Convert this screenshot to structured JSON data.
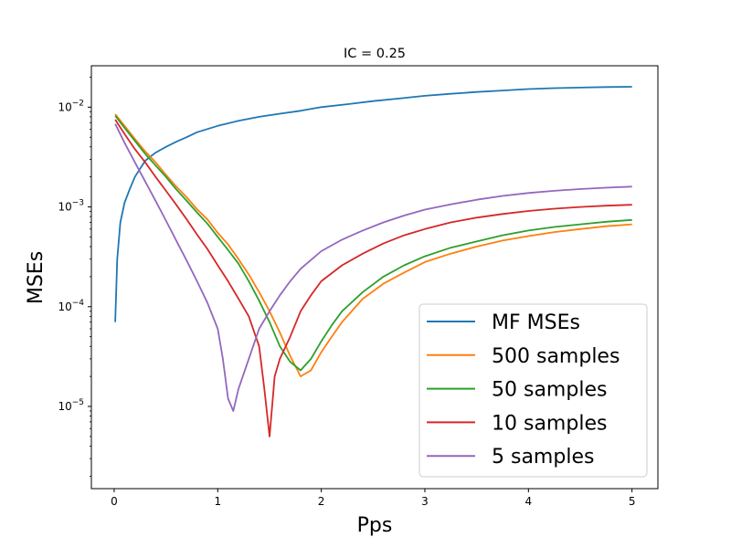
{
  "chart_data": {
    "type": "line",
    "title": "IC = 0.25",
    "xlabel": "Pps",
    "ylabel": "MSEs",
    "xlim": [
      -0.22,
      5.25
    ],
    "ylim": [
      1.5e-06,
      0.026
    ],
    "yscale": "log",
    "legend_position": "lower-right",
    "x_ticks": [
      0,
      1,
      2,
      3,
      4,
      5
    ],
    "x_tick_labels": [
      "0",
      "1",
      "2",
      "3",
      "4",
      "5"
    ],
    "y_ticks": [
      1e-05,
      0.0001,
      0.001,
      0.01
    ],
    "y_tick_labels": [
      {
        "base": "10",
        "exp": "−5"
      },
      {
        "base": "10",
        "exp": "−4"
      },
      {
        "base": "10",
        "exp": "−3"
      },
      {
        "base": "10",
        "exp": "−2"
      }
    ],
    "series": [
      {
        "name": "MF MSEs",
        "color": "#1f77b4",
        "points": [
          [
            0.01,
            7e-05
          ],
          [
            0.03,
            0.0003
          ],
          [
            0.06,
            0.0007
          ],
          [
            0.1,
            0.0011
          ],
          [
            0.15,
            0.0015
          ],
          [
            0.2,
            0.002
          ],
          [
            0.3,
            0.0029
          ],
          [
            0.4,
            0.0035
          ],
          [
            0.5,
            0.004
          ],
          [
            0.6,
            0.0045
          ],
          [
            0.7,
            0.005
          ],
          [
            0.8,
            0.0056
          ],
          [
            1.0,
            0.0065
          ],
          [
            1.2,
            0.0073
          ],
          [
            1.4,
            0.008
          ],
          [
            1.6,
            0.0086
          ],
          [
            1.8,
            0.0092
          ],
          [
            2.0,
            0.01
          ],
          [
            2.25,
            0.0107
          ],
          [
            2.5,
            0.0115
          ],
          [
            2.75,
            0.0122
          ],
          [
            3.0,
            0.013
          ],
          [
            3.25,
            0.0136
          ],
          [
            3.5,
            0.0142
          ],
          [
            3.75,
            0.0147
          ],
          [
            4.0,
            0.0152
          ],
          [
            4.25,
            0.0155
          ],
          [
            4.5,
            0.0157
          ],
          [
            4.75,
            0.0159
          ],
          [
            5.0,
            0.016
          ]
        ]
      },
      {
        "name": "500 samples",
        "color": "#ff7f0e",
        "points": [
          [
            0.01,
            0.0085
          ],
          [
            0.1,
            0.0065
          ],
          [
            0.2,
            0.0048
          ],
          [
            0.3,
            0.0036
          ],
          [
            0.4,
            0.0028
          ],
          [
            0.5,
            0.0021
          ],
          [
            0.6,
            0.0016
          ],
          [
            0.7,
            0.00125
          ],
          [
            0.8,
            0.00095
          ],
          [
            0.9,
            0.00075
          ],
          [
            1.0,
            0.00055
          ],
          [
            1.1,
            0.00042
          ],
          [
            1.2,
            0.0003
          ],
          [
            1.3,
            0.00021
          ],
          [
            1.4,
            0.00014
          ],
          [
            1.5,
            9e-05
          ],
          [
            1.6,
            5.5e-05
          ],
          [
            1.7,
            3.2e-05
          ],
          [
            1.8,
            2e-05
          ],
          [
            1.9,
            2.3e-05
          ],
          [
            2.0,
            3.5e-05
          ],
          [
            2.1,
            5e-05
          ],
          [
            2.2,
            7e-05
          ],
          [
            2.4,
            0.00012
          ],
          [
            2.6,
            0.00017
          ],
          [
            2.8,
            0.00022
          ],
          [
            3.0,
            0.00028
          ],
          [
            3.25,
            0.00034
          ],
          [
            3.5,
            0.0004
          ],
          [
            3.75,
            0.00046
          ],
          [
            4.0,
            0.00051
          ],
          [
            4.25,
            0.00056
          ],
          [
            4.5,
            0.0006
          ],
          [
            4.75,
            0.00064
          ],
          [
            5.0,
            0.00067
          ]
        ]
      },
      {
        "name": "50 samples",
        "color": "#2ca02c",
        "points": [
          [
            0.01,
            0.0082
          ],
          [
            0.1,
            0.0062
          ],
          [
            0.2,
            0.0046
          ],
          [
            0.3,
            0.0034
          ],
          [
            0.4,
            0.0026
          ],
          [
            0.5,
            0.002
          ],
          [
            0.6,
            0.0015
          ],
          [
            0.7,
            0.00115
          ],
          [
            0.8,
            0.00088
          ],
          [
            0.9,
            0.00068
          ],
          [
            1.0,
            0.0005
          ],
          [
            1.1,
            0.00037
          ],
          [
            1.2,
            0.00027
          ],
          [
            1.3,
            0.00018
          ],
          [
            1.4,
            0.000115
          ],
          [
            1.5,
            7e-05
          ],
          [
            1.6,
            4e-05
          ],
          [
            1.7,
            2.8e-05
          ],
          [
            1.8,
            2.3e-05
          ],
          [
            1.9,
            3e-05
          ],
          [
            2.0,
            4.5e-05
          ],
          [
            2.1,
            6.5e-05
          ],
          [
            2.2,
            9e-05
          ],
          [
            2.4,
            0.00014
          ],
          [
            2.6,
            0.0002
          ],
          [
            2.8,
            0.00026
          ],
          [
            3.0,
            0.00032
          ],
          [
            3.25,
            0.00039
          ],
          [
            3.5,
            0.00045
          ],
          [
            3.75,
            0.00052
          ],
          [
            4.0,
            0.00058
          ],
          [
            4.25,
            0.00063
          ],
          [
            4.5,
            0.00067
          ],
          [
            4.75,
            0.00071
          ],
          [
            5.0,
            0.00074
          ]
        ]
      },
      {
        "name": "10 samples",
        "color": "#d62728",
        "points": [
          [
            0.01,
            0.0075
          ],
          [
            0.1,
            0.0054
          ],
          [
            0.2,
            0.0038
          ],
          [
            0.3,
            0.0028
          ],
          [
            0.4,
            0.002
          ],
          [
            0.5,
            0.00145
          ],
          [
            0.6,
            0.00105
          ],
          [
            0.7,
            0.00075
          ],
          [
            0.8,
            0.00053
          ],
          [
            0.9,
            0.00038
          ],
          [
            1.0,
            0.00026
          ],
          [
            1.1,
            0.00018
          ],
          [
            1.2,
            0.00012
          ],
          [
            1.3,
            8e-05
          ],
          [
            1.4,
            4e-05
          ],
          [
            1.45,
            1.5e-05
          ],
          [
            1.5,
            5e-06
          ],
          [
            1.55,
            2e-05
          ],
          [
            1.6,
            3e-05
          ],
          [
            1.7,
            5e-05
          ],
          [
            1.8,
            9e-05
          ],
          [
            1.9,
            0.00013
          ],
          [
            2.0,
            0.00018
          ],
          [
            2.2,
            0.00026
          ],
          [
            2.4,
            0.00034
          ],
          [
            2.6,
            0.00043
          ],
          [
            2.8,
            0.00052
          ],
          [
            3.0,
            0.0006
          ],
          [
            3.25,
            0.0007
          ],
          [
            3.5,
            0.00078
          ],
          [
            3.75,
            0.00085
          ],
          [
            4.0,
            0.00091
          ],
          [
            4.25,
            0.00096
          ],
          [
            4.5,
            0.001
          ],
          [
            4.75,
            0.00103
          ],
          [
            5.0,
            0.00105
          ]
        ]
      },
      {
        "name": "5 samples",
        "color": "#9467bd",
        "points": [
          [
            0.01,
            0.0068
          ],
          [
            0.1,
            0.0044
          ],
          [
            0.2,
            0.0028
          ],
          [
            0.3,
            0.0018
          ],
          [
            0.4,
            0.00115
          ],
          [
            0.5,
            0.00073
          ],
          [
            0.6,
            0.00046
          ],
          [
            0.7,
            0.00029
          ],
          [
            0.8,
            0.00018
          ],
          [
            0.9,
            0.00011
          ],
          [
            1.0,
            6e-05
          ],
          [
            1.05,
            3e-05
          ],
          [
            1.1,
            1.2e-05
          ],
          [
            1.15,
            9e-06
          ],
          [
            1.2,
            1.5e-05
          ],
          [
            1.3,
            3e-05
          ],
          [
            1.4,
            6e-05
          ],
          [
            1.5,
            9e-05
          ],
          [
            1.6,
            0.00013
          ],
          [
            1.7,
            0.00018
          ],
          [
            1.8,
            0.00024
          ],
          [
            2.0,
            0.00036
          ],
          [
            2.2,
            0.00047
          ],
          [
            2.4,
            0.00058
          ],
          [
            2.6,
            0.0007
          ],
          [
            2.8,
            0.00082
          ],
          [
            3.0,
            0.00094
          ],
          [
            3.25,
            0.00106
          ],
          [
            3.5,
            0.00118
          ],
          [
            3.75,
            0.00129
          ],
          [
            4.0,
            0.00138
          ],
          [
            4.25,
            0.00145
          ],
          [
            4.5,
            0.00151
          ],
          [
            4.75,
            0.00156
          ],
          [
            5.0,
            0.0016
          ]
        ]
      }
    ]
  }
}
